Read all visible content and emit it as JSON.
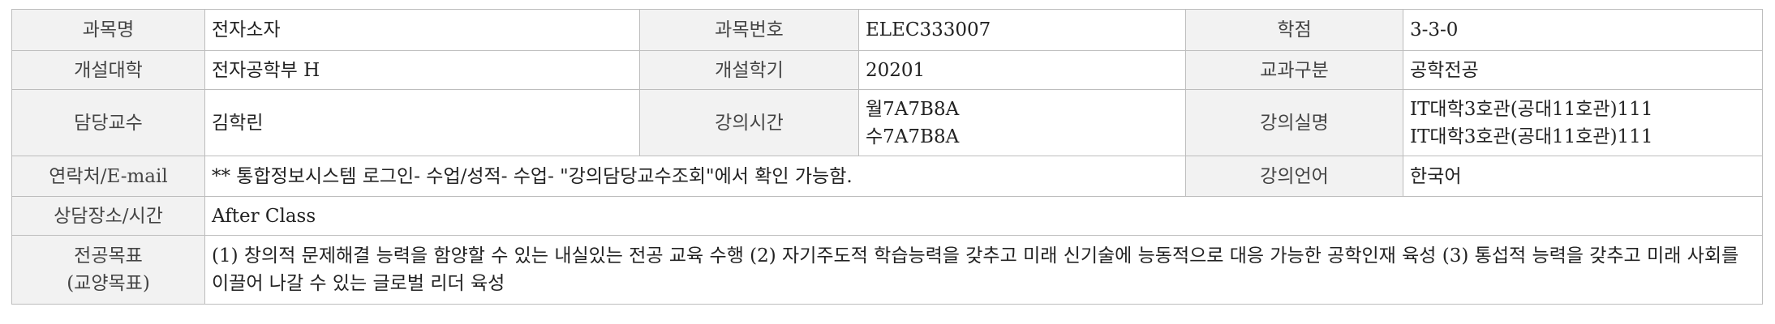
{
  "rows": {
    "r1": {
      "course_name_label": "과목명",
      "course_name": "전자소자",
      "course_no_label": "과목번호",
      "course_no": "ELEC333007",
      "credit_label": "학점",
      "credit": "3-3-0"
    },
    "r2": {
      "college_label": "개설대학",
      "college": "전자공학부 H",
      "semester_label": "개설학기",
      "semester": "20201",
      "category_label": "교과구분",
      "category": "공학전공"
    },
    "r3": {
      "professor_label": "담당교수",
      "professor": "김학린",
      "time_label": "강의시간",
      "times": [
        "월7A7B8A",
        "수7A7B8A"
      ],
      "room_label": "강의실명",
      "rooms": [
        "IT대학3호관(공대11호관)111",
        "IT대학3호관(공대11호관)111"
      ]
    },
    "r4": {
      "contact_label": "연락처/E-mail",
      "contact": "** 통합정보시스템 로그인- 수업/성적- 수업- \"강의담당교수조회\"에서 확인 가능함.",
      "language_label": "강의언어",
      "language": "한국어"
    },
    "r5": {
      "office_label": "상담장소/시간",
      "office": "After Class"
    },
    "r6": {
      "goal_label_line1": "전공목표",
      "goal_label_line2": "(교양목표)",
      "goal": "(1) 창의적 문제해결 능력을 함양할 수 있는 내실있는 전공 교육 수행 (2) 자기주도적 학습능력을 갖추고 미래 신기술에 능동적으로 대응 가능한 공학인재 육성 (3) 통섭적 능력을 갖추고 미래 사회를 이끌어 나갈 수 있는 글로벌 리더 육성"
    }
  }
}
